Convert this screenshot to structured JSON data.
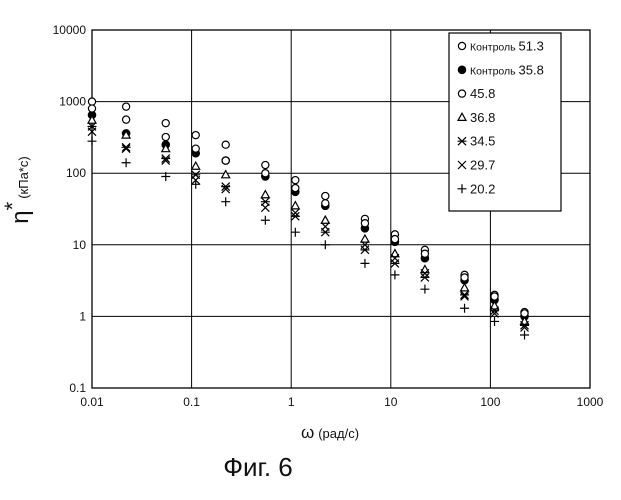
{
  "figure_caption": "Фиг. 6",
  "chart_data": {
    "type": "scatter",
    "xscale": "log",
    "yscale": "log",
    "xlim": [
      0.01,
      1000
    ],
    "ylim": [
      0.1,
      10000
    ],
    "grid": true,
    "legend_position": "top-right",
    "xlabel": {
      "symbol": "ω",
      "units": "(рад/с)"
    },
    "ylabel": {
      "symbol": "η",
      "sup": "*",
      "units": "(кПа*с)"
    },
    "xticks": [
      {
        "value": 0.01,
        "label": "0.01"
      },
      {
        "value": 0.1,
        "label": "0.1"
      },
      {
        "value": 1,
        "label": "1"
      },
      {
        "value": 10,
        "label": "10"
      },
      {
        "value": 100,
        "label": "100"
      },
      {
        "value": 1000,
        "label": "1000"
      }
    ],
    "yticks": [
      {
        "value": 0.1,
        "label": "0.1"
      },
      {
        "value": 1,
        "label": "1"
      },
      {
        "value": 10,
        "label": "10"
      },
      {
        "value": 100,
        "label": "100"
      },
      {
        "value": 1000,
        "label": "1000"
      },
      {
        "value": 10000,
        "label": "10000"
      }
    ],
    "x": [
      0.01,
      0.022,
      0.055,
      0.11,
      0.22,
      0.55,
      1.1,
      2.2,
      5.5,
      11,
      22,
      55,
      110,
      220
    ],
    "series": [
      {
        "name": "Контроль",
        "value": "51.3",
        "marker": "open-circle",
        "values": [
          1000,
          850,
          500,
          340,
          250,
          130,
          80,
          48,
          23,
          14,
          8.5,
          3.8,
          2.0,
          1.15
        ]
      },
      {
        "name": "Контроль",
        "value": "35.8",
        "marker": "filled-circle",
        "values": [
          650,
          360,
          250,
          190,
          150,
          90,
          55,
          35,
          17,
          11,
          6.5,
          3.2,
          1.7,
          1.0
        ]
      },
      {
        "name": "",
        "value": "45.8",
        "marker": "open-circle",
        "values": [
          800,
          560,
          320,
          220,
          150,
          100,
          62,
          38,
          20,
          12,
          7.5,
          3.5,
          1.9,
          1.1
        ]
      },
      {
        "name": "",
        "value": "36.8",
        "marker": "open-triangle",
        "values": [
          550,
          340,
          220,
          125,
          95,
          50,
          35,
          22,
          12,
          7.5,
          4.5,
          2.5,
          1.4,
          0.85
        ]
      },
      {
        "name": "",
        "value": "34.5",
        "marker": "asterisk",
        "values": [
          450,
          230,
          160,
          95,
          65,
          40,
          25,
          15,
          8.5,
          5.5,
          3.5,
          2.0,
          1.2,
          0.75
        ]
      },
      {
        "name": "",
        "value": "29.7",
        "marker": "x",
        "values": [
          380,
          220,
          150,
          80,
          60,
          33,
          28,
          18,
          10,
          6.5,
          4.0,
          1.9,
          1.1,
          0.7
        ]
      },
      {
        "name": "",
        "value": "20.2",
        "marker": "plus",
        "values": [
          280,
          140,
          90,
          70,
          40,
          22,
          15,
          10,
          5.5,
          3.8,
          2.4,
          1.3,
          0.85,
          0.55
        ]
      }
    ]
  }
}
